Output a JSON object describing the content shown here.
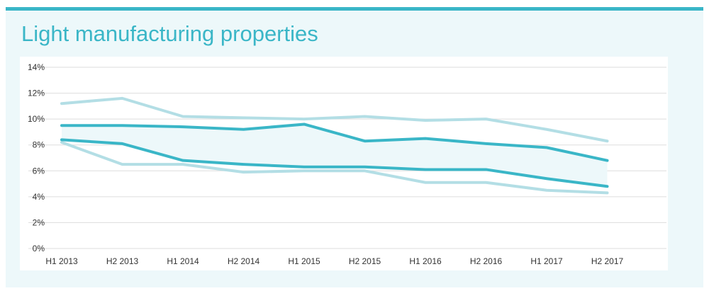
{
  "title": "Light manufacturing properties",
  "colors": {
    "accent": "#3ab6c7",
    "light_line": "#b3dee5",
    "band_fill": "#edf8fa",
    "grid": "#dddddd"
  },
  "chart_data": {
    "type": "line",
    "title": "Light manufacturing properties",
    "xlabel": "",
    "ylabel": "",
    "categories": [
      "H1 2013",
      "H2 2013",
      "H1 2014",
      "H2 2014",
      "H1 2015",
      "H2 2015",
      "H1 2016",
      "H2 2016",
      "H1 2017",
      "H2 2017"
    ],
    "ylim": [
      0,
      14
    ],
    "yticks": [
      0,
      2,
      4,
      6,
      8,
      10,
      12,
      14
    ],
    "ytick_labels": [
      "0%",
      "2%",
      "4%",
      "6%",
      "8%",
      "10%",
      "12%",
      "14%"
    ],
    "grid": "horizontal",
    "legend": "none",
    "shaded_band": "between upper and lower dark series",
    "series": [
      {
        "style": "light",
        "values": [
          11.2,
          11.6,
          10.2,
          10.1,
          10.0,
          10.2,
          9.9,
          10.0,
          9.2,
          8.3
        ]
      },
      {
        "style": "dark",
        "values": [
          9.5,
          9.5,
          9.4,
          9.2,
          9.6,
          8.3,
          8.5,
          8.1,
          7.8,
          6.8
        ]
      },
      {
        "style": "dark",
        "values": [
          8.4,
          8.1,
          6.8,
          6.5,
          6.3,
          6.3,
          6.1,
          6.1,
          5.4,
          4.8
        ]
      },
      {
        "style": "light",
        "values": [
          8.2,
          6.5,
          6.5,
          5.9,
          6.0,
          6.0,
          5.1,
          5.1,
          4.5,
          4.3
        ]
      }
    ]
  }
}
